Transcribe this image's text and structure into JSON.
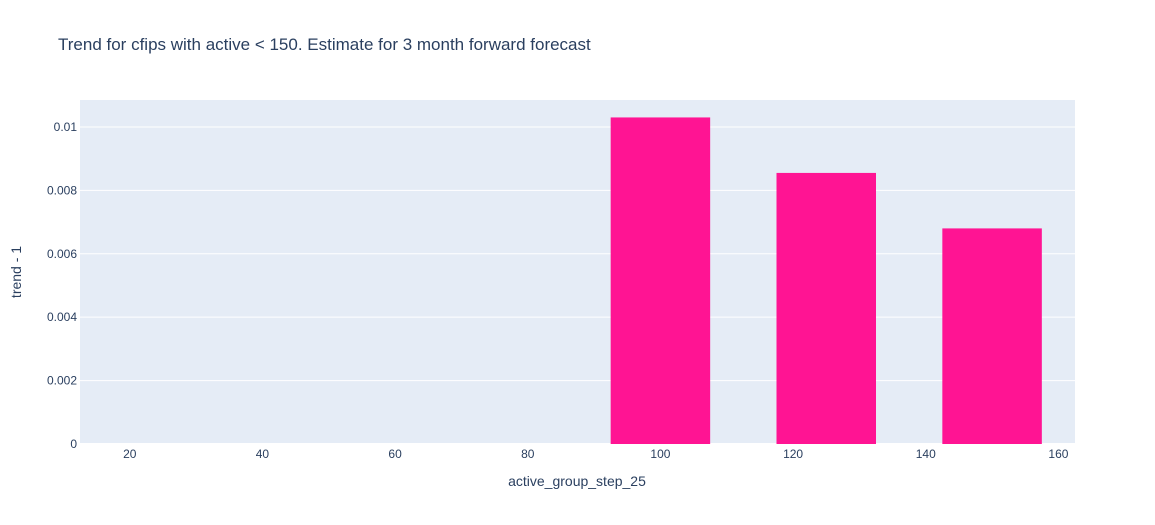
{
  "chart_data": {
    "type": "bar",
    "title": "Trend for cfips with active < 150. Estimate for 3 month forward forecast",
    "xlabel": "active_group_step_25",
    "ylabel": "trend - 1",
    "x": [
      25,
      50,
      75,
      100,
      125,
      150
    ],
    "values": [
      0,
      0,
      0,
      0.0103,
      0.00855,
      0.0068
    ],
    "xlim": [
      12.5,
      162.5
    ],
    "ylim": [
      0,
      0.01085
    ],
    "x_ticks": [
      20,
      40,
      60,
      80,
      100,
      120,
      140,
      160
    ],
    "x_tick_labels": [
      "20",
      "40",
      "60",
      "80",
      "100",
      "120",
      "140",
      "160"
    ],
    "y_ticks": [
      0,
      0.002,
      0.004,
      0.006,
      0.008,
      0.01
    ],
    "y_tick_labels": [
      "0",
      "0.002",
      "0.004",
      "0.006",
      "0.008",
      "0.01"
    ],
    "bar_width": 20,
    "grid": true,
    "colors": {
      "bar": "#ff1493",
      "plot_bg": "#e5ecf6",
      "grid": "#ffffff",
      "text": "#2a3f5f"
    }
  }
}
